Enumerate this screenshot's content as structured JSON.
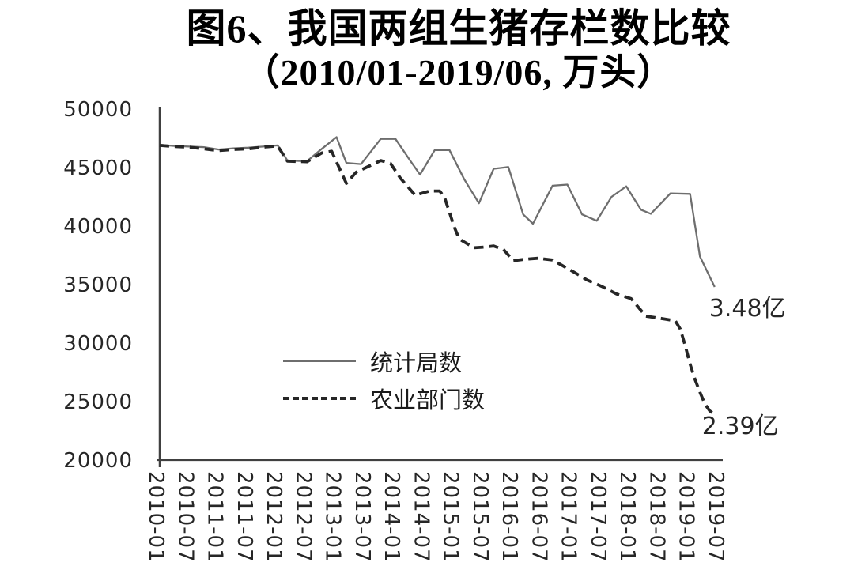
{
  "figure": {
    "title_line1": "图6、我国两组生猪存栏数比较",
    "title_line2": "（2010/01-2019/06, 万头）"
  },
  "colors": {
    "background": "#ffffff",
    "text": "#1a1a1a",
    "axis": "#404040",
    "solid_series": "#6e6e6e",
    "dashed_series": "#262626"
  },
  "chart_data": {
    "type": "line",
    "title": "图6、我国两组生猪存栏数比较（2010/01-2019/06, 万头）",
    "unit": "万头",
    "grid": false,
    "legend_position": "inside-center-left",
    "x_axis": {
      "start": "2010-01",
      "end": "2019-07",
      "tick_interval_months": 6,
      "tick_labels": [
        "2010-01",
        "2010-07",
        "2011-01",
        "2011-07",
        "2012-01",
        "2012-07",
        "2013-01",
        "2013-07",
        "2014-01",
        "2014-07",
        "2015-01",
        "2015-07",
        "2016-01",
        "2016-07",
        "2017-01",
        "2017-07",
        "2018-01",
        "2018-07",
        "2019-01",
        "2019-07"
      ]
    },
    "y_axis": {
      "min": 20000,
      "max": 50000,
      "ticks": [
        50000,
        45000,
        40000,
        35000,
        30000,
        25000,
        20000
      ]
    },
    "series": [
      {
        "name": "统计局数",
        "line_style": "solid",
        "color": "#6e6e6e",
        "points": [
          [
            "2010-01",
            46950
          ],
          [
            "2010-04",
            46850
          ],
          [
            "2010-07",
            46800
          ],
          [
            "2010-10",
            46750
          ],
          [
            "2011-01",
            46550
          ],
          [
            "2011-04",
            46650
          ],
          [
            "2011-07",
            46700
          ],
          [
            "2011-10",
            46800
          ],
          [
            "2012-01",
            46900
          ],
          [
            "2012-03",
            45600
          ],
          [
            "2012-07",
            45550
          ],
          [
            "2012-10",
            46600
          ],
          [
            "2013-01",
            47600
          ],
          [
            "2013-03",
            45400
          ],
          [
            "2013-06",
            45300
          ],
          [
            "2013-10",
            47450
          ],
          [
            "2014-01",
            47450
          ],
          [
            "2014-04",
            45600
          ],
          [
            "2014-06",
            44400
          ],
          [
            "2014-09",
            46500
          ],
          [
            "2014-12",
            46500
          ],
          [
            "2015-03",
            44000
          ],
          [
            "2015-06",
            41950
          ],
          [
            "2015-09",
            44900
          ],
          [
            "2015-12",
            45050
          ],
          [
            "2016-03",
            41000
          ],
          [
            "2016-05",
            40200
          ],
          [
            "2016-09",
            43450
          ],
          [
            "2016-12",
            43550
          ],
          [
            "2017-03",
            41000
          ],
          [
            "2017-06",
            40450
          ],
          [
            "2017-09",
            42500
          ],
          [
            "2017-12",
            43400
          ],
          [
            "2018-03",
            41400
          ],
          [
            "2018-05",
            41050
          ],
          [
            "2018-09",
            42800
          ],
          [
            "2019-01",
            42750
          ],
          [
            "2019-03",
            37400
          ],
          [
            "2019-06",
            34800
          ]
        ]
      },
      {
        "name": "农业部门数",
        "line_style": "dashed",
        "color": "#262626",
        "points": [
          [
            "2010-01",
            46900
          ],
          [
            "2010-04",
            46800
          ],
          [
            "2010-07",
            46750
          ],
          [
            "2010-10",
            46600
          ],
          [
            "2011-01",
            46450
          ],
          [
            "2011-04",
            46550
          ],
          [
            "2011-07",
            46600
          ],
          [
            "2011-10",
            46750
          ],
          [
            "2012-01",
            46850
          ],
          [
            "2012-03",
            45550
          ],
          [
            "2012-07",
            45500
          ],
          [
            "2012-10",
            46250
          ],
          [
            "2012-12",
            46400
          ],
          [
            "2013-03",
            43650
          ],
          [
            "2013-05",
            44600
          ],
          [
            "2013-07",
            45000
          ],
          [
            "2013-10",
            45600
          ],
          [
            "2013-12",
            45350
          ],
          [
            "2014-02",
            44100
          ],
          [
            "2014-05",
            42650
          ],
          [
            "2014-08",
            43000
          ],
          [
            "2014-10",
            43000
          ],
          [
            "2014-11",
            42450
          ],
          [
            "2015-01",
            39900
          ],
          [
            "2015-02",
            38900
          ],
          [
            "2015-05",
            38150
          ],
          [
            "2015-07",
            38200
          ],
          [
            "2015-09",
            38300
          ],
          [
            "2015-11",
            38000
          ],
          [
            "2016-01",
            37050
          ],
          [
            "2016-03",
            37150
          ],
          [
            "2016-06",
            37250
          ],
          [
            "2016-09",
            37100
          ],
          [
            "2017-01",
            36150
          ],
          [
            "2017-04",
            35400
          ],
          [
            "2017-07",
            34850
          ],
          [
            "2017-10",
            34200
          ],
          [
            "2018-01",
            33800
          ],
          [
            "2018-04",
            32300
          ],
          [
            "2018-08",
            32050
          ],
          [
            "2018-10",
            31900
          ],
          [
            "2018-11",
            31200
          ],
          [
            "2018-12",
            29800
          ],
          [
            "2019-01",
            28200
          ],
          [
            "2019-02",
            26900
          ],
          [
            "2019-03",
            25800
          ],
          [
            "2019-04",
            24800
          ],
          [
            "2019-05",
            24200
          ],
          [
            "2019-06",
            23900
          ]
        ]
      }
    ],
    "annotations": [
      {
        "text": "3.48亿",
        "series": "统计局数",
        "date": "2019-06",
        "value": 34800
      },
      {
        "text": "2.39亿",
        "series": "农业部门数",
        "date": "2019-06",
        "value": 23900
      }
    ]
  }
}
